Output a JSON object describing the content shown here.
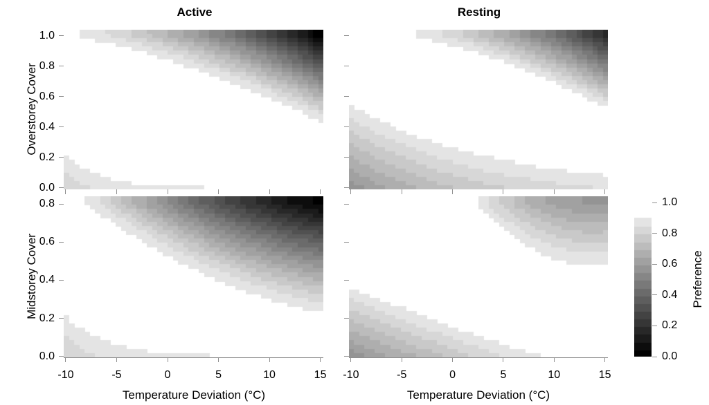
{
  "chart_data": {
    "type": "heatmap",
    "columns": [
      "Active",
      "Resting"
    ],
    "xlabel": "Temperature Deviation (°C)",
    "xlim": [
      -10,
      15
    ],
    "xticks": [
      -10,
      -5,
      0,
      5,
      10,
      15
    ],
    "rows": [
      {
        "ylabel": "Overstorey Cover",
        "ylim": [
          0,
          1.0
        ],
        "yticks": [
          1.0,
          0.8,
          0.6,
          0.4,
          0.2,
          0.0
        ]
      },
      {
        "ylabel": "Midstorey Cover",
        "ylim": [
          0,
          0.8
        ],
        "yticks": [
          0.8,
          0.6,
          0.4,
          0.2,
          0.0
        ]
      }
    ],
    "colorbar": {
      "label": "Preference",
      "ticks": [
        1.0,
        0.8,
        0.6,
        0.4,
        0.2,
        0.0
      ],
      "range": [
        0,
        1
      ],
      "band_step": 0.05,
      "color_low": "#000000",
      "color_high": "#ffffff",
      "note": "preference >= 0.9 renders white; discrete 0.05 grey bands down to black at 0"
    },
    "panels": [
      {
        "id": "active-overstorey",
        "column": "Active",
        "row": "Overstorey Cover",
        "upper_region": {
          "description": "preference drops below 0.9 toward top-right, ~0 (black) at x=15, cover=1.0",
          "top_edge_start_x": -8.9,
          "right_edge_end_y": 0.44,
          "bow": 0.055,
          "corner_pref": 0.02,
          "gamma": 1.15
        },
        "lower_region": {
          "description": "small light patch at bottom-left, min ~0.8",
          "left_edge_top_y": 0.225,
          "shape": "exp",
          "decay": 7.5,
          "corner_pref": 0.8,
          "gamma": 1.0
        }
      },
      {
        "id": "resting-overstorey",
        "column": "Resting",
        "row": "Overstorey Cover",
        "upper_region": {
          "description": "dark wedge in top-right, ~0.2 at x=15, cover=1.0",
          "top_edge_start_x": -3.8,
          "right_edge_end_y": 0.53,
          "bow": 0.05,
          "corner_pref": 0.18,
          "gamma": 1.1
        },
        "lower_region": {
          "description": "grey band along bottom, darkest ~0.57 at x=-10, cover=0",
          "left_edge_top_y": 0.55,
          "shape": "exp",
          "decay": 1.85,
          "corner_pref": 0.57,
          "gamma": 1.05
        }
      },
      {
        "id": "active-midstorey",
        "column": "Active",
        "row": "Midstorey Cover",
        "upper_region": {
          "description": "preference drops below 0.9 toward top-right, ~0 (black) at x=15, cover=0.8",
          "top_edge_start_x": -8.0,
          "right_edge_end_y": 0.232,
          "bow": -0.1,
          "corner_pref": 0.03,
          "gamma": 1.2
        },
        "lower_region": {
          "description": "small light patch at bottom-left, min ~0.8",
          "left_edge_top_y": 0.21,
          "shape": "exp",
          "decay": 6.0,
          "corner_pref": 0.8,
          "gamma": 1.0
        }
      },
      {
        "id": "resting-midstorey",
        "column": "Resting",
        "row": "Midstorey Cover",
        "upper_region": {
          "description": "grey wedge in top-right, ~0.6 at x=15, cover=0.8",
          "top_edge_start_x": 2.3,
          "right_edge_end_y": 0.484,
          "bow": -0.12,
          "corner_pref": 0.6,
          "gamma": 1.1
        },
        "lower_region": {
          "description": "grey wedge along bottom-left reaching x~9, darkest ~0.57 at corner",
          "left_edge_top_y": 0.36,
          "shape": "linear_pow",
          "zero_x": 9.25,
          "pow": 1.15,
          "corner_pref": 0.57,
          "gamma": 1.05
        }
      }
    ]
  }
}
